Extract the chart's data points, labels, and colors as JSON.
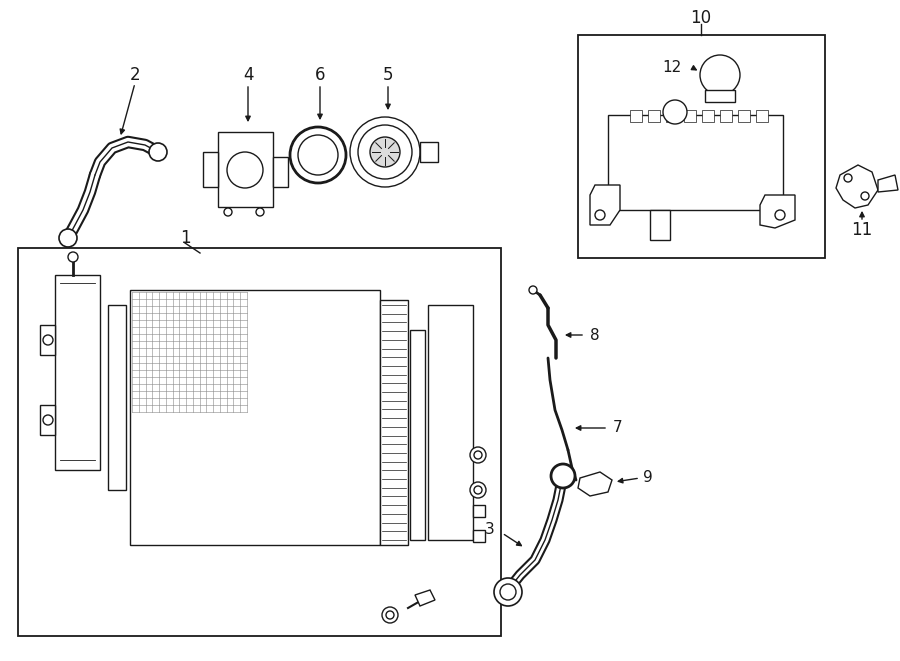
{
  "background_color": "#ffffff",
  "line_color": "#1a1a1a",
  "fig_width": 9.0,
  "fig_height": 6.61,
  "dpi": 100,
  "lw": 1.0
}
